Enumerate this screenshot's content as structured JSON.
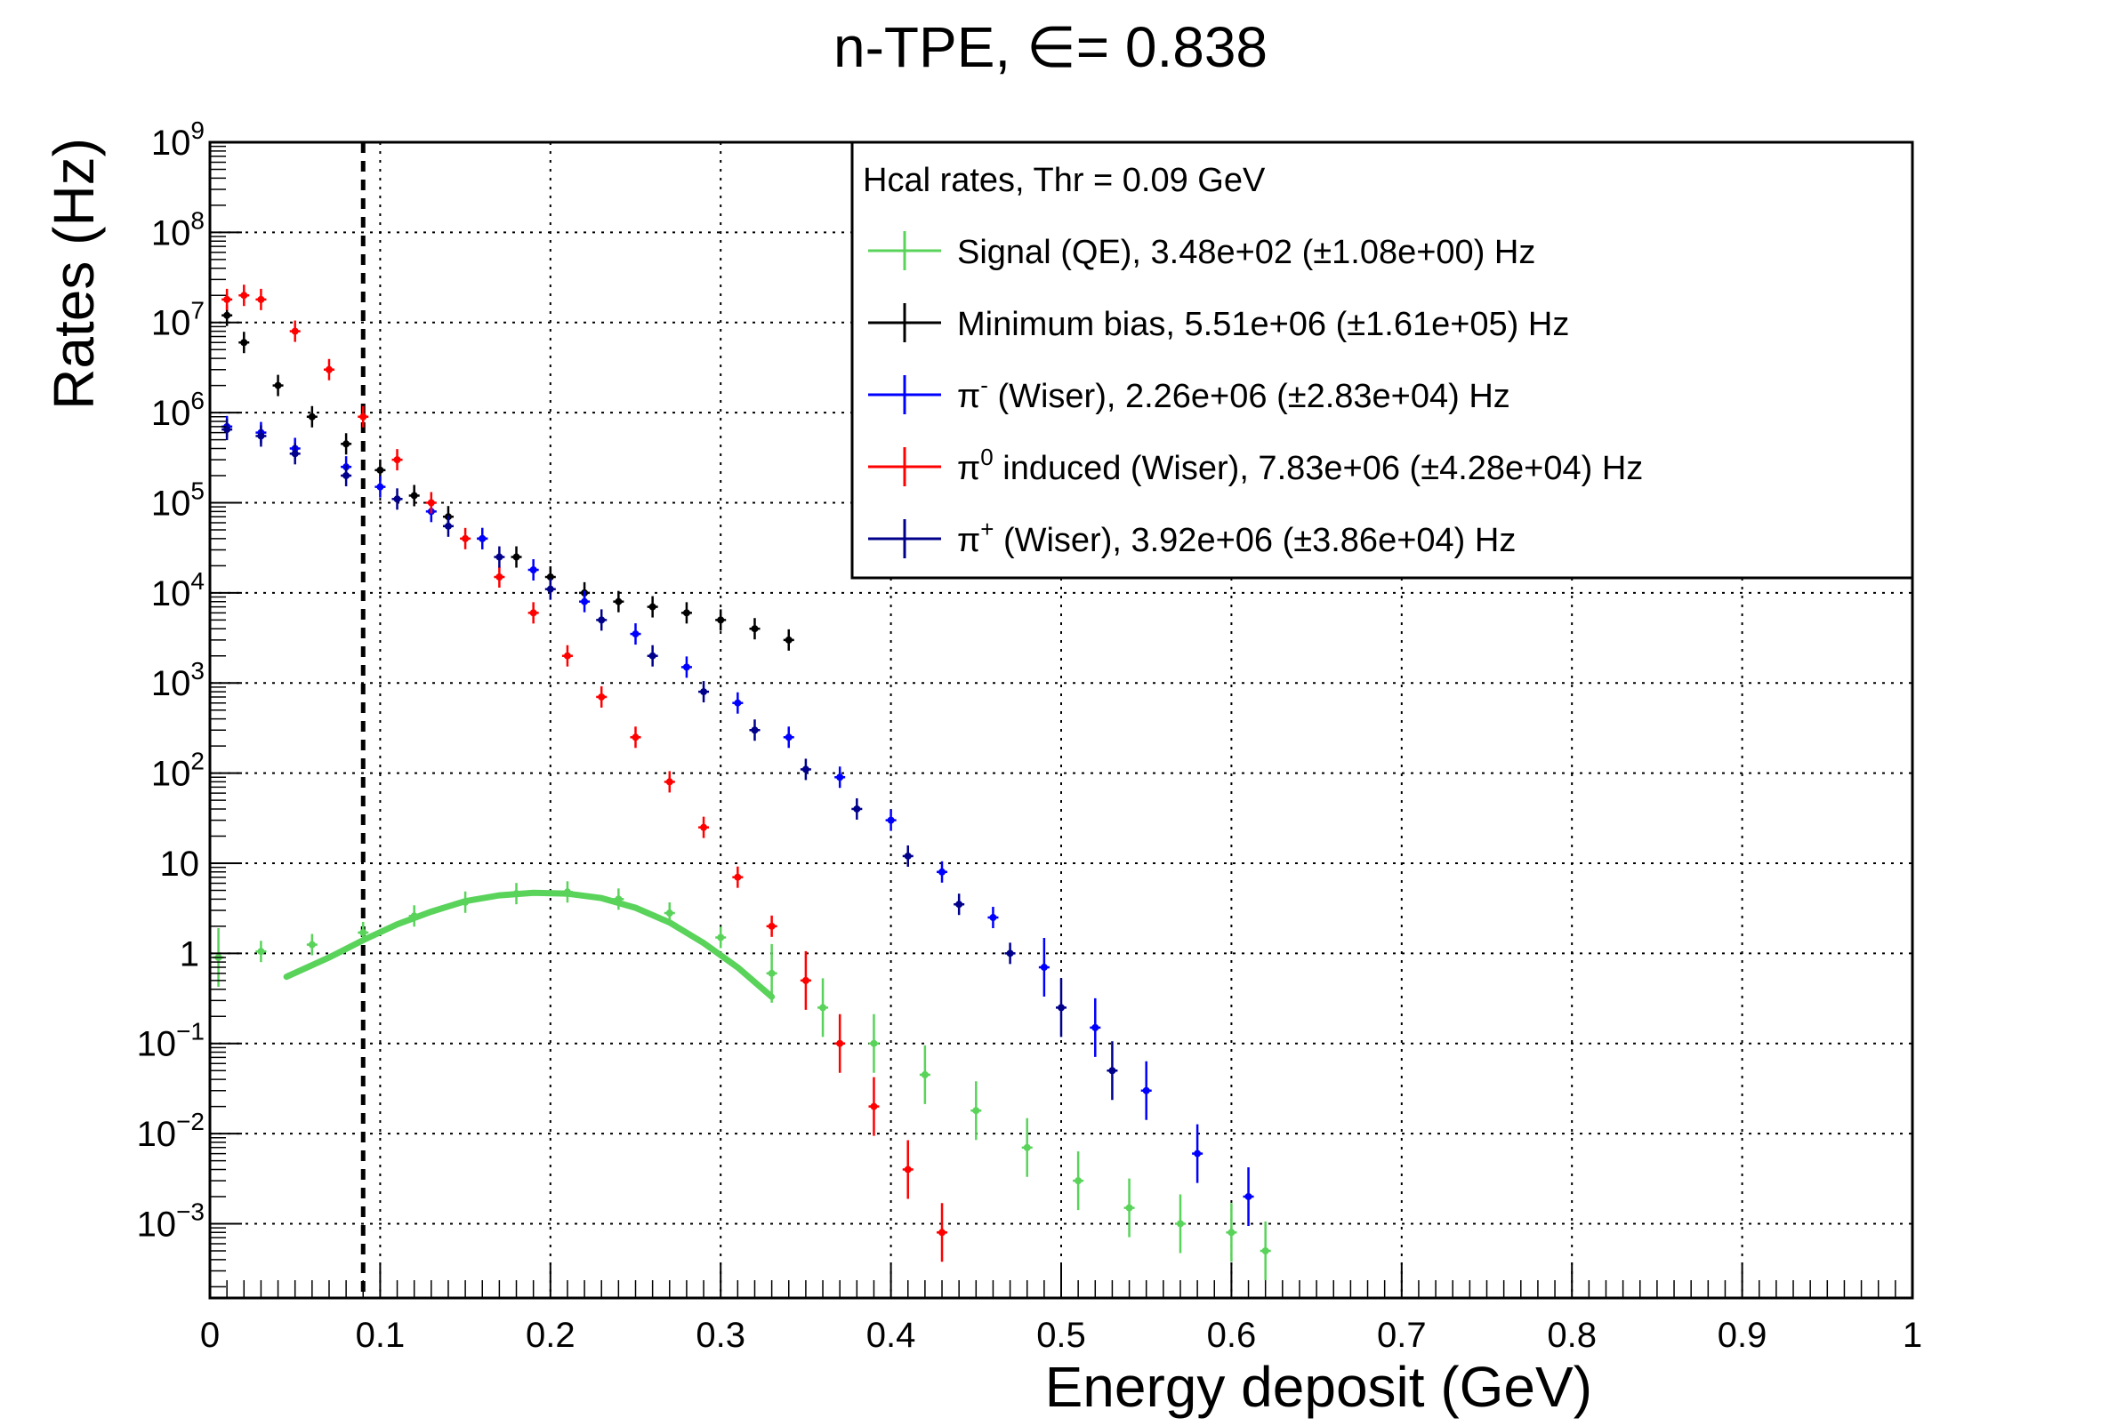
{
  "chart_data": {
    "type": "scatter",
    "title": "n-TPE, ∈= 0.838",
    "xlabel": "Energy deposit (GeV)",
    "ylabel": "Rates (Hz)",
    "xlim": [
      0,
      1
    ],
    "ylim": [
      0.00015,
      1000000000
    ],
    "yscale": "log",
    "grid": true,
    "legend_position": "top-right",
    "x_tick_labels": [
      "0",
      "0.1",
      "0.2",
      "0.3",
      "0.4",
      "0.5",
      "0.6",
      "0.7",
      "0.8",
      "0.9",
      "1"
    ],
    "y_ticks": [
      {
        "value": 0.001,
        "base": "10",
        "exp": "−3"
      },
      {
        "value": 0.01,
        "base": "10",
        "exp": "−2"
      },
      {
        "value": 0.1,
        "base": "10",
        "exp": "−1"
      },
      {
        "value": 1,
        "base": "1",
        "exp": ""
      },
      {
        "value": 10,
        "base": "10",
        "exp": ""
      },
      {
        "value": 100,
        "base": "10",
        "exp": "2"
      },
      {
        "value": 1000,
        "base": "10",
        "exp": "3"
      },
      {
        "value": 10000,
        "base": "10",
        "exp": "4"
      },
      {
        "value": 100000,
        "base": "10",
        "exp": "5"
      },
      {
        "value": 1000000,
        "base": "10",
        "exp": "6"
      },
      {
        "value": 10000000,
        "base": "10",
        "exp": "7"
      },
      {
        "value": 100000000,
        "base": "10",
        "exp": "8"
      },
      {
        "value": 1000000000,
        "base": "10",
        "exp": "9"
      }
    ],
    "legend_header": "Hcal rates, Thr = 0.09 GeV",
    "threshold_line": {
      "x": 0.09,
      "style": "dashed"
    },
    "series": [
      {
        "name": "Signal (QE), 3.48e+02 (±1.08e+00) Hz",
        "legend_parts": {
          "pre": "Signal (QE), 3.48e+02 (",
          "pm": "±",
          "post": "1.08e+00) Hz",
          "sup": ""
        },
        "color": "#59d35a",
        "x": [
          0.005,
          0.03,
          0.06,
          0.09,
          0.12,
          0.15,
          0.18,
          0.21,
          0.24,
          0.27,
          0.3,
          0.33,
          0.36,
          0.39,
          0.42,
          0.45,
          0.48,
          0.51,
          0.54,
          0.57,
          0.6,
          0.62
        ],
        "y": [
          0.9,
          1.05,
          1.25,
          1.7,
          2.6,
          3.7,
          4.6,
          4.8,
          4.0,
          2.8,
          1.5,
          0.6,
          0.25,
          0.1,
          0.045,
          0.018,
          0.007,
          0.003,
          0.0015,
          0.001,
          0.0008,
          0.0005
        ]
      },
      {
        "name": "Minimum bias, 5.51e+06 (±1.61e+05) Hz",
        "legend_parts": {
          "pre": "Minimum bias, 5.51e+06 (",
          "pm": "±",
          "post": "1.61e+05) Hz",
          "sup": ""
        },
        "color": "#000000",
        "x": [
          0.01,
          0.02,
          0.04,
          0.06,
          0.08,
          0.1,
          0.12,
          0.14,
          0.16,
          0.18,
          0.2,
          0.22,
          0.24,
          0.26,
          0.28,
          0.3,
          0.32,
          0.34
        ],
        "y": [
          12000000,
          6000000,
          2000000,
          900000,
          450000,
          230000,
          120000,
          70000,
          40000,
          25000,
          15000,
          10000,
          8000,
          7000,
          6000,
          5000,
          4000,
          3000
        ]
      },
      {
        "name": "(Wiser), 2.26e+06 (±2.83e+04) Hz",
        "legend_parts": {
          "pre": "π",
          "sup": "-",
          "rest": " (Wiser), 2.26e+06 (",
          "pm": "±",
          "post": "2.83e+04) Hz"
        },
        "color": "#0000ff",
        "x": [
          0.01,
          0.03,
          0.05,
          0.08,
          0.1,
          0.13,
          0.16,
          0.19,
          0.22,
          0.25,
          0.28,
          0.31,
          0.34,
          0.37,
          0.4,
          0.43,
          0.46,
          0.49,
          0.52,
          0.55,
          0.58,
          0.61
        ],
        "y": [
          700000,
          600000,
          400000,
          250000,
          150000,
          80000,
          40000,
          18000,
          8000,
          3500,
          1500,
          600,
          250,
          90,
          30,
          8,
          2.5,
          0.7,
          0.15,
          0.03,
          0.006,
          0.002
        ]
      },
      {
        "name": "induced (Wiser), 7.83e+06 (±4.28e+04) Hz",
        "legend_parts": {
          "pre": "π",
          "sup": "0",
          "rest": " induced (Wiser), 7.83e+06 (",
          "pm": "±",
          "post": "4.28e+04) Hz"
        },
        "color": "#ff0000",
        "x": [
          0.01,
          0.02,
          0.03,
          0.05,
          0.07,
          0.09,
          0.11,
          0.13,
          0.15,
          0.17,
          0.19,
          0.21,
          0.23,
          0.25,
          0.27,
          0.29,
          0.31,
          0.33,
          0.35,
          0.37,
          0.39,
          0.41,
          0.43
        ],
        "y": [
          18000000,
          20000000,
          18000000,
          8000000,
          3000000,
          900000,
          300000,
          100000,
          40000,
          15000,
          6000,
          2000,
          700,
          250,
          80,
          25,
          7,
          2,
          0.5,
          0.1,
          0.02,
          0.004,
          0.0008
        ]
      },
      {
        "name": "(Wiser), 3.92e+06 (±3.86e+04) Hz",
        "legend_parts": {
          "pre": "π",
          "sup": "+",
          "rest": " (Wiser), 3.92e+06 (",
          "pm": "±",
          "post": "3.86e+04) Hz"
        },
        "color": "#00008b",
        "x": [
          0.01,
          0.03,
          0.05,
          0.08,
          0.11,
          0.14,
          0.17,
          0.2,
          0.23,
          0.26,
          0.29,
          0.32,
          0.35,
          0.38,
          0.41,
          0.44,
          0.47,
          0.5,
          0.53
        ],
        "y": [
          650000,
          550000,
          350000,
          200000,
          110000,
          55000,
          25000,
          11000,
          5000,
          2000,
          800,
          300,
          110,
          40,
          12,
          3.5,
          1,
          0.25,
          0.05
        ]
      }
    ],
    "signal_fit": {
      "x": [
        0.045,
        0.07,
        0.09,
        0.11,
        0.13,
        0.15,
        0.17,
        0.19,
        0.21,
        0.23,
        0.25,
        0.27,
        0.29,
        0.31,
        0.33
      ],
      "y": [
        0.55,
        0.9,
        1.4,
        2.1,
        2.9,
        3.8,
        4.4,
        4.7,
        4.6,
        4.1,
        3.2,
        2.2,
        1.3,
        0.7,
        0.33
      ]
    }
  }
}
